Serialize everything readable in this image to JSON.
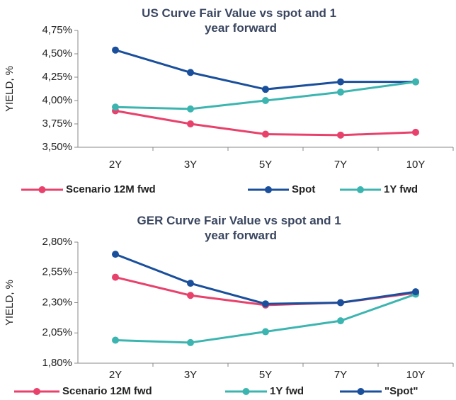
{
  "chart_data": [
    {
      "type": "line",
      "title": "US Curve Fair Value vs spot and 1 year forward",
      "y_label": "YIELD, %",
      "categories": [
        "2Y",
        "3Y",
        "5Y",
        "7Y",
        "10Y"
      ],
      "series": [
        {
          "name": "Scenario 12M fwd",
          "color": "#e8416b",
          "values": [
            3.89,
            3.75,
            3.64,
            3.63,
            3.66
          ]
        },
        {
          "name": "Spot",
          "color": "#1a4f9c",
          "values": [
            4.54,
            4.3,
            4.12,
            4.2,
            4.2
          ]
        },
        {
          "name": "1Y fwd",
          "color": "#3cb5b0",
          "values": [
            3.93,
            3.91,
            4.0,
            4.09,
            4.2
          ]
        }
      ],
      "ylim": [
        3.5,
        4.75
      ],
      "yticks": [
        {
          "value": 3.5,
          "label": "3,50%"
        },
        {
          "value": 3.75,
          "label": "3,75%"
        },
        {
          "value": 4.0,
          "label": "4,00%"
        },
        {
          "value": 4.25,
          "label": "4,25%"
        },
        {
          "value": 4.5,
          "label": "4,50%"
        },
        {
          "value": 4.75,
          "label": "4,75%"
        }
      ],
      "legend": "bottom"
    },
    {
      "type": "line",
      "title": "GER Curve Fair Value vs spot and 1 year forward",
      "y_label": "YIELD, %",
      "categories": [
        "2Y",
        "3Y",
        "5Y",
        "7Y",
        "10Y"
      ],
      "series": [
        {
          "name": "Scenario 12M fwd",
          "color": "#e8416b",
          "values": [
            2.51,
            2.36,
            2.28,
            2.3,
            2.38
          ]
        },
        {
          "name": "1Y fwd",
          "color": "#3cb5b0",
          "values": [
            1.99,
            1.97,
            2.06,
            2.15,
            2.37
          ]
        },
        {
          "name": "\"Spot\"",
          "color": "#1a4f9c",
          "values": [
            2.7,
            2.46,
            2.29,
            2.3,
            2.39
          ]
        }
      ],
      "ylim": [
        1.8,
        2.8
      ],
      "yticks": [
        {
          "value": 1.8,
          "label": "1,80%"
        },
        {
          "value": 2.05,
          "label": "2,05%"
        },
        {
          "value": 2.3,
          "label": "2,30%"
        },
        {
          "value": 2.55,
          "label": "2,55%"
        },
        {
          "value": 2.8,
          "label": "2,80%"
        }
      ],
      "legend": "bottom"
    }
  ]
}
